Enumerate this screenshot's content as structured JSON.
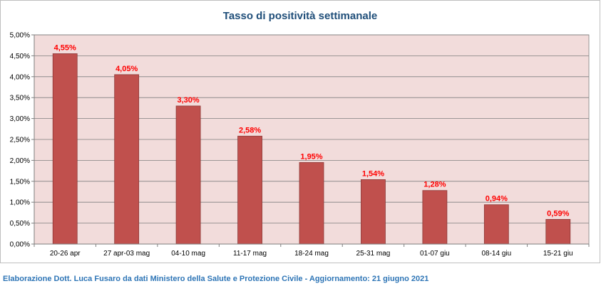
{
  "chart_data": {
    "type": "bar",
    "title": "Tasso di positività settimanale",
    "categories": [
      "20-26 apr",
      "27 apr-03 mag",
      "04-10 mag",
      "11-17 mag",
      "18-24 mag",
      "25-31 mag",
      "01-07 giu",
      "08-14 giu",
      "15-21 giu"
    ],
    "values": [
      4.55,
      4.05,
      3.3,
      2.58,
      1.95,
      1.54,
      1.28,
      0.94,
      0.59
    ],
    "data_labels": [
      "4,55%",
      "4,05%",
      "3,30%",
      "2,58%",
      "1,95%",
      "1,54%",
      "1,28%",
      "0,94%",
      "0,59%"
    ],
    "ylim": [
      0,
      5
    ],
    "yticks": [
      0,
      0.5,
      1,
      1.5,
      2,
      2.5,
      3,
      3.5,
      4,
      4.5,
      5
    ],
    "ytick_labels": [
      "0,00%",
      "0,50%",
      "1,00%",
      "1,50%",
      "2,00%",
      "2,50%",
      "3,00%",
      "3,50%",
      "4,00%",
      "4,50%",
      "5,00%"
    ],
    "xlabel": "",
    "ylabel": "",
    "grid": true,
    "colors": {
      "bar": "#c0504d",
      "bar_border": "#8c3836",
      "plot_background": "#f2dcdb",
      "data_label": "#ff0000",
      "title": "#1f4e79"
    }
  },
  "footer": {
    "text": "Elaborazione Dott. Luca Fusaro da dati Ministero della Salute e Protezione Civile - Aggiornamento: 21 giugno 2021",
    "color": "#2e75b6"
  }
}
